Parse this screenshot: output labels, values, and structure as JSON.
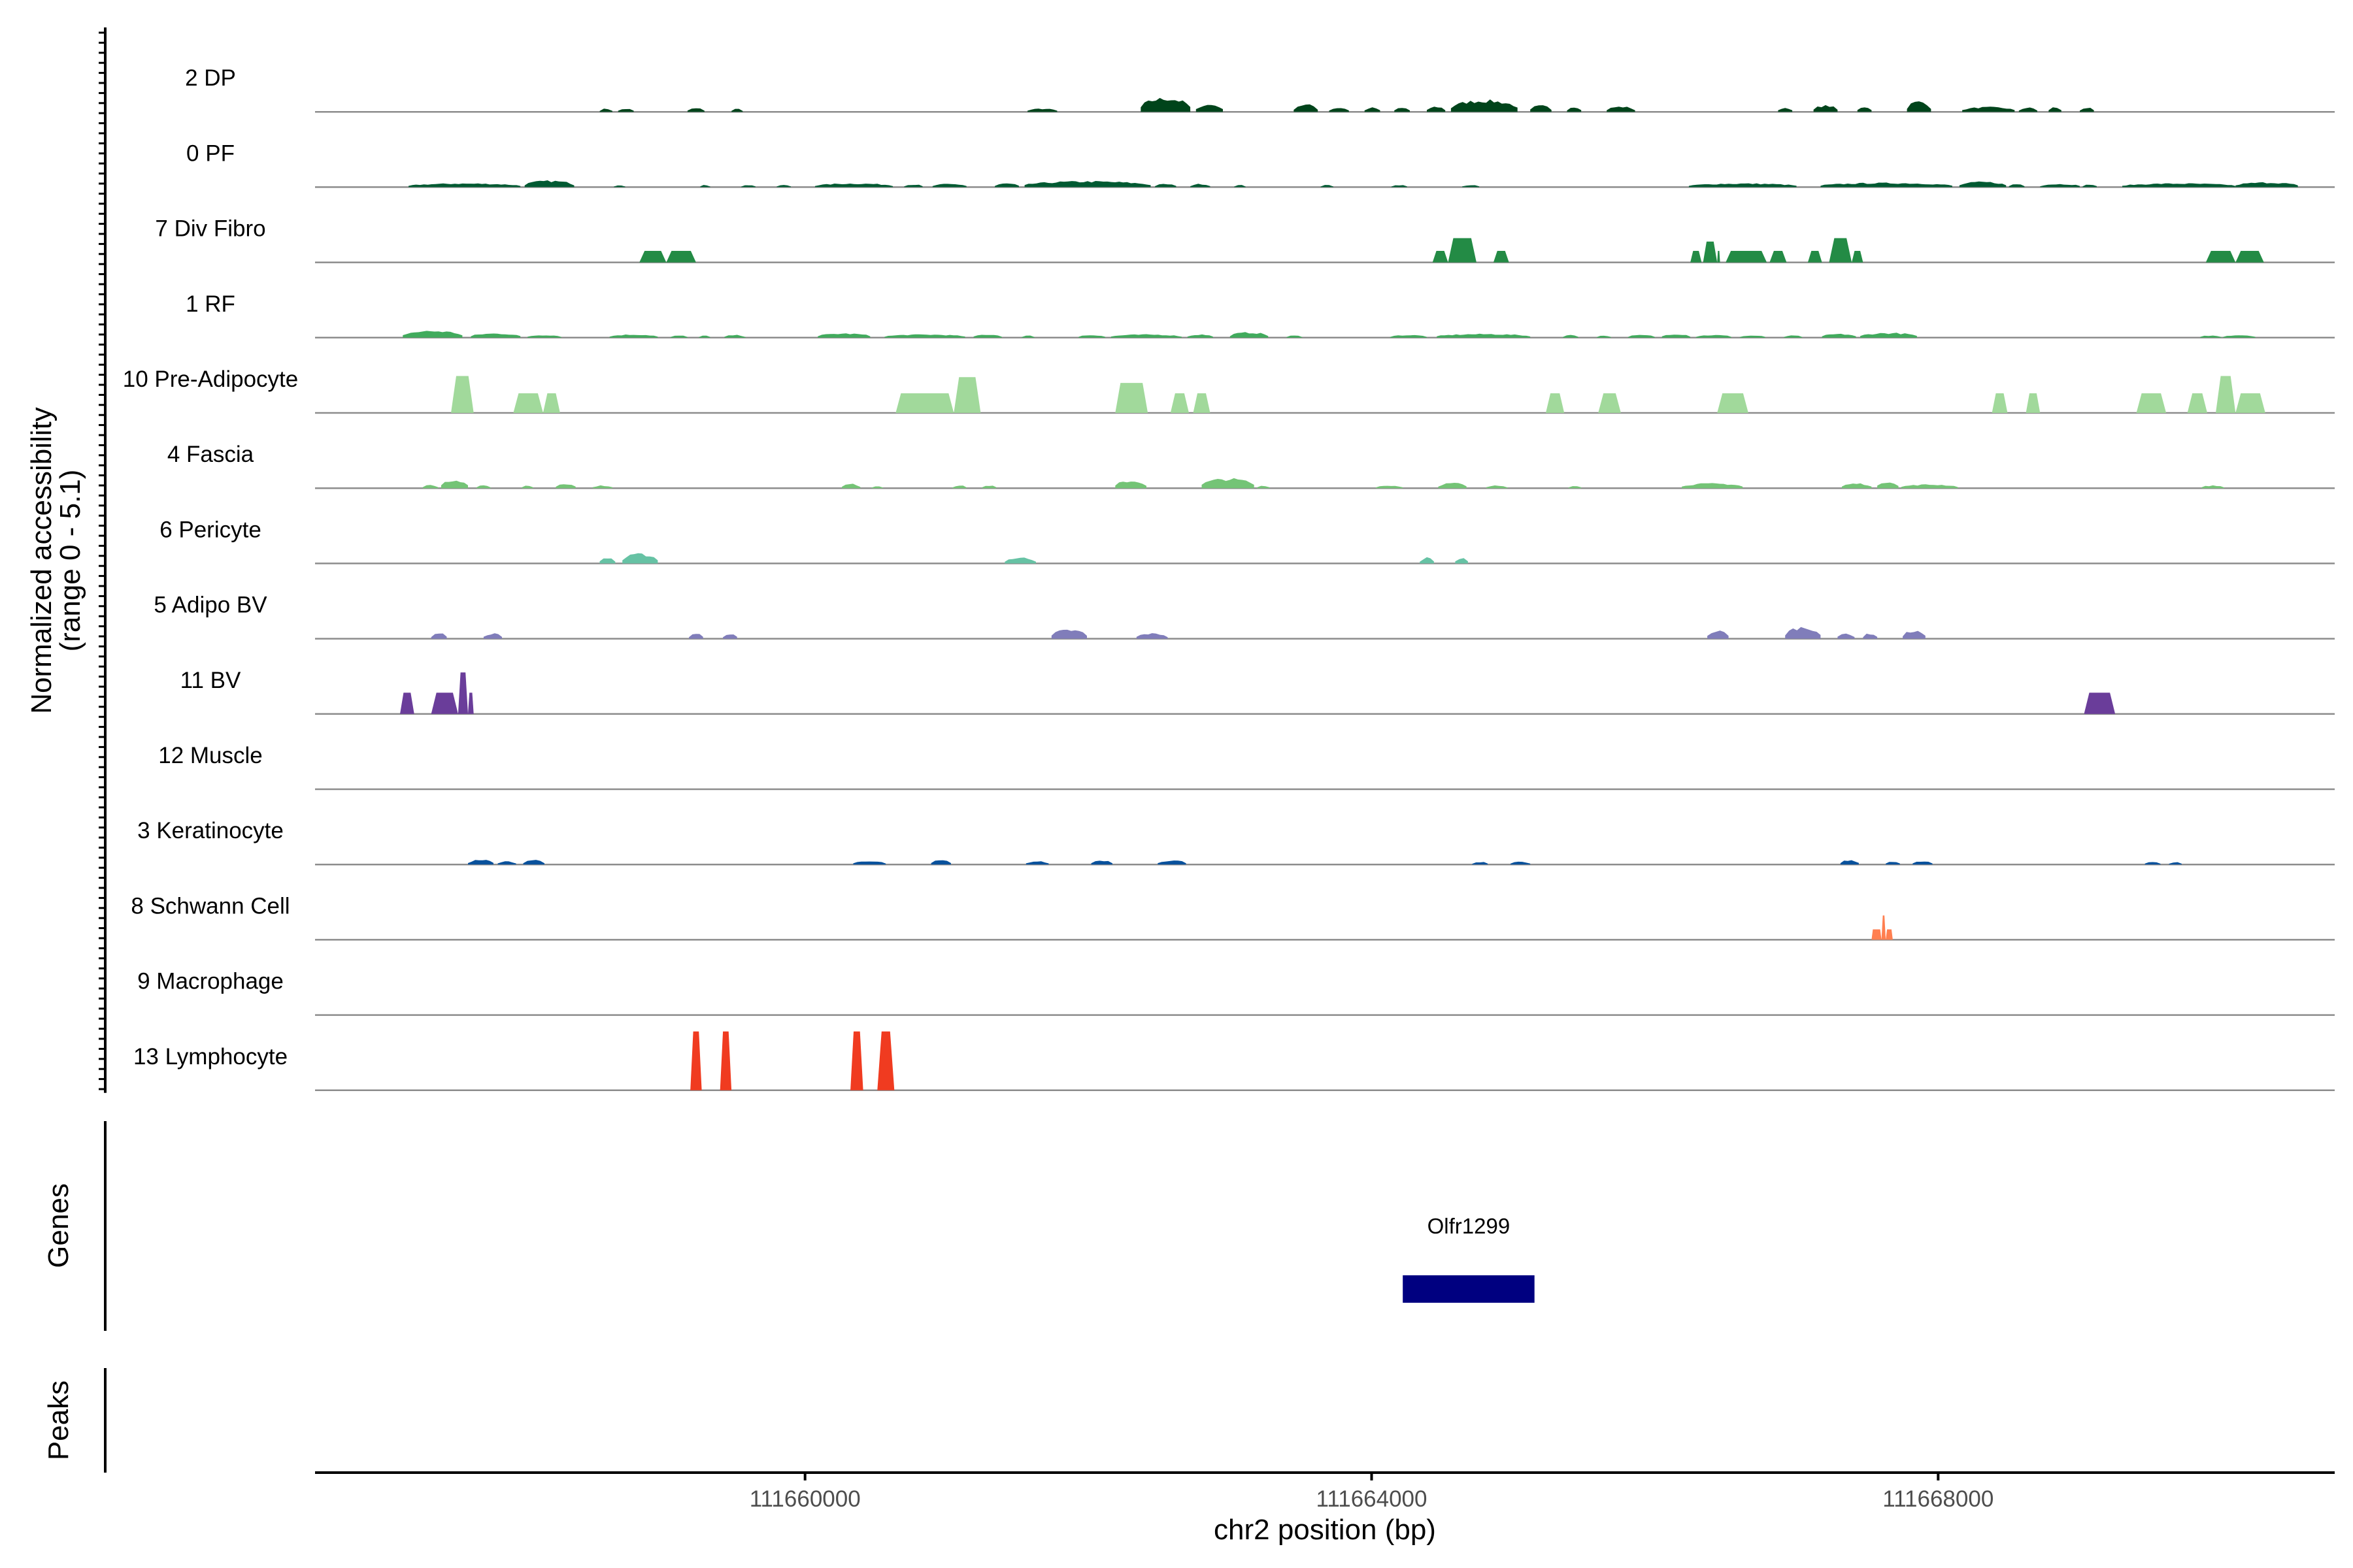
{
  "chart_data": {
    "type": "area",
    "title": "",
    "ylabel_line1": "Normalized accessibility",
    "ylabel_line2": "(range 0 - 5.1)",
    "y_range": [
      0,
      5.1
    ],
    "xlabel": "chr2 position (bp)",
    "xlim": [
      111656540,
      111670800
    ],
    "x_ticks": [
      111660000,
      111664000,
      111668000
    ],
    "x_tick_labels": [
      "111660000",
      "111664000",
      "111668000"
    ],
    "tracks": [
      {
        "name": "2 DP",
        "color": "#00441b",
        "style": "noisy",
        "peaks": [
          [
            111658550,
            111658640,
            0.3
          ],
          [
            111658680,
            111658790,
            0.3
          ],
          [
            111659170,
            111659290,
            0.35
          ],
          [
            111659480,
            111659560,
            0.3
          ],
          [
            111661570,
            111661780,
            0.3
          ],
          [
            111662370,
            111662720,
            1.3
          ],
          [
            111662760,
            111662950,
            0.7
          ],
          [
            111663450,
            111663620,
            0.7
          ],
          [
            111663700,
            111663840,
            0.4
          ],
          [
            111663950,
            111664060,
            0.4
          ],
          [
            111664160,
            111664270,
            0.4
          ],
          [
            111664390,
            111664520,
            0.5
          ],
          [
            111664560,
            111665030,
            1.1
          ],
          [
            111665120,
            111665270,
            0.6
          ],
          [
            111665380,
            111665480,
            0.5
          ],
          [
            111665660,
            111665860,
            0.5
          ],
          [
            111666870,
            111666970,
            0.4
          ],
          [
            111667120,
            111667290,
            0.6
          ],
          [
            111667430,
            111667530,
            0.5
          ],
          [
            111667780,
            111667950,
            1.0
          ],
          [
            111668170,
            111668540,
            0.45
          ],
          [
            111668570,
            111668700,
            0.4
          ],
          [
            111668780,
            111668870,
            0.45
          ],
          [
            111669000,
            111669100,
            0.4
          ]
        ]
      },
      {
        "name": "0 PF",
        "color": "#005a32",
        "style": "noisy",
        "peaks": [
          [
            111657200,
            111657990,
            0.35
          ],
          [
            111658020,
            111658370,
            0.6
          ],
          [
            111658650,
            111658730,
            0.2
          ],
          [
            111659260,
            111659330,
            0.2
          ],
          [
            111659550,
            111659650,
            0.2
          ],
          [
            111659800,
            111659900,
            0.2
          ],
          [
            111660070,
            111660620,
            0.35
          ],
          [
            111660700,
            111660830,
            0.25
          ],
          [
            111660900,
            111661140,
            0.3
          ],
          [
            111661340,
            111661510,
            0.35
          ],
          [
            111661550,
            111662440,
            0.55
          ],
          [
            111662470,
            111662620,
            0.3
          ],
          [
            111662720,
            111662860,
            0.3
          ],
          [
            111663030,
            111663110,
            0.2
          ],
          [
            111663640,
            111663730,
            0.2
          ],
          [
            111664140,
            111664250,
            0.2
          ],
          [
            111664640,
            111664760,
            0.2
          ],
          [
            111666240,
            111667000,
            0.35
          ],
          [
            111667170,
            111668100,
            0.4
          ],
          [
            111668150,
            111668480,
            0.5
          ],
          [
            111668500,
            111668610,
            0.3
          ],
          [
            111668720,
            111669000,
            0.3
          ],
          [
            111669020,
            111669120,
            0.25
          ],
          [
            111669300,
            111670100,
            0.35
          ],
          [
            111670100,
            111670540,
            0.45
          ]
        ]
      },
      {
        "name": "7 Div Fibro",
        "color": "#238b45",
        "style": "blocky",
        "peaks": [
          [
            111658830,
            111659020,
            1.0
          ],
          [
            111659020,
            111659230,
            1.0
          ],
          [
            111664430,
            111664540,
            1.0
          ],
          [
            111664540,
            111664740,
            2.1
          ],
          [
            111664860,
            111664970,
            1.0
          ],
          [
            111666250,
            111666330,
            1.0
          ],
          [
            111666340,
            111666440,
            1.8
          ],
          [
            111666440,
            111666460,
            1.0
          ],
          [
            111666500,
            111666790,
            1.0
          ],
          [
            111666810,
            111666930,
            1.0
          ],
          [
            111667080,
            111667180,
            1.0
          ],
          [
            111667230,
            111667390,
            2.1
          ],
          [
            111667390,
            111667470,
            1.0
          ],
          [
            111669890,
            111670100,
            1.0
          ],
          [
            111670100,
            111670300,
            1.0
          ]
        ]
      },
      {
        "name": "1 RF",
        "color": "#41ab5d",
        "style": "noisy",
        "peaks": [
          [
            111657160,
            111657580,
            0.65
          ],
          [
            111657640,
            111657990,
            0.4
          ],
          [
            111658040,
            111658280,
            0.25
          ],
          [
            111658620,
            111658960,
            0.3
          ],
          [
            111659050,
            111659170,
            0.2
          ],
          [
            111659250,
            111659330,
            0.2
          ],
          [
            111659430,
            111659580,
            0.25
          ],
          [
            111660090,
            111660460,
            0.4
          ],
          [
            111660560,
            111661130,
            0.3
          ],
          [
            111661190,
            111661390,
            0.3
          ],
          [
            111661530,
            111661620,
            0.2
          ],
          [
            111661930,
            111662120,
            0.25
          ],
          [
            111662160,
            111662660,
            0.3
          ],
          [
            111662700,
            111662880,
            0.3
          ],
          [
            111663000,
            111663270,
            0.5
          ],
          [
            111663400,
            111663510,
            0.2
          ],
          [
            111664130,
            111664390,
            0.25
          ],
          [
            111664460,
            111665120,
            0.35
          ],
          [
            111665350,
            111665460,
            0.25
          ],
          [
            111665590,
            111665690,
            0.2
          ],
          [
            111665810,
            111666000,
            0.25
          ],
          [
            111666050,
            111666250,
            0.35
          ],
          [
            111666290,
            111666540,
            0.25
          ],
          [
            111666600,
            111666780,
            0.2
          ],
          [
            111666910,
            111667040,
            0.2
          ],
          [
            111667180,
            111667420,
            0.35
          ],
          [
            111667450,
            111667850,
            0.45
          ],
          [
            111669850,
            111670000,
            0.2
          ],
          [
            111670010,
            111670240,
            0.25
          ]
        ]
      },
      {
        "name": "10 Pre-Adipocyte",
        "color": "#a1d99b",
        "style": "blocky",
        "peaks": [
          [
            111657500,
            111657660,
            3.2
          ],
          [
            111657940,
            111658150,
            1.7
          ],
          [
            111658150,
            111658270,
            1.7
          ],
          [
            111660640,
            111661050,
            1.7
          ],
          [
            111661050,
            111661240,
            3.1
          ],
          [
            111662190,
            111662420,
            2.6
          ],
          [
            111662580,
            111662710,
            1.7
          ],
          [
            111662740,
            111662860,
            1.7
          ],
          [
            111665230,
            111665360,
            1.7
          ],
          [
            111665600,
            111665760,
            1.7
          ],
          [
            111666440,
            111666660,
            1.7
          ],
          [
            111668380,
            111668490,
            1.7
          ],
          [
            111668620,
            111668720,
            1.7
          ],
          [
            111669400,
            111669610,
            1.7
          ],
          [
            111669760,
            111669900,
            1.7
          ],
          [
            111669960,
            111670100,
            3.2
          ],
          [
            111670100,
            111670310,
            1.7
          ]
        ]
      },
      {
        "name": "4 Fascia",
        "color": "#74c476",
        "style": "noisy",
        "peaks": [
          [
            111657300,
            111657410,
            0.3
          ],
          [
            111657430,
            111657620,
            0.8
          ],
          [
            111657680,
            111657780,
            0.25
          ],
          [
            111658000,
            111658080,
            0.25
          ],
          [
            111658240,
            111658380,
            0.45
          ],
          [
            111658500,
            111658640,
            0.25
          ],
          [
            111660260,
            111660390,
            0.4
          ],
          [
            111660470,
            111660550,
            0.2
          ],
          [
            111661040,
            111661140,
            0.25
          ],
          [
            111661250,
            111661350,
            0.25
          ],
          [
            111662190,
            111662410,
            0.7
          ],
          [
            111662800,
            111663170,
            0.9
          ],
          [
            111663190,
            111663280,
            0.25
          ],
          [
            111664030,
            111664220,
            0.25
          ],
          [
            111664470,
            111664670,
            0.5
          ],
          [
            111664810,
            111664960,
            0.25
          ],
          [
            111665390,
            111665480,
            0.25
          ],
          [
            111666190,
            111666620,
            0.45
          ],
          [
            111667320,
            111667530,
            0.45
          ],
          [
            111667570,
            111667720,
            0.65
          ],
          [
            111667740,
            111668140,
            0.35
          ],
          [
            111669860,
            111670020,
            0.25
          ]
        ]
      },
      {
        "name": "6 Pericyte",
        "color": "#66c2a4",
        "style": "noisy",
        "peaks": [
          [
            111658550,
            111658660,
            0.55
          ],
          [
            111658710,
            111658960,
            0.9
          ],
          [
            111661410,
            111661630,
            0.55
          ],
          [
            111664340,
            111664440,
            0.55
          ],
          [
            111664590,
            111664680,
            0.55
          ]
        ]
      },
      {
        "name": "5 Adipo BV",
        "color": "#807dba",
        "style": "noisy",
        "peaks": [
          [
            111657360,
            111657470,
            0.55
          ],
          [
            111657730,
            111657860,
            0.5
          ],
          [
            111659180,
            111659280,
            0.5
          ],
          [
            111659420,
            111659520,
            0.5
          ],
          [
            111661740,
            111661990,
            0.85
          ],
          [
            111662340,
            111662560,
            0.5
          ],
          [
            111666370,
            111666520,
            0.75
          ],
          [
            111666920,
            111667170,
            1.1
          ],
          [
            111667290,
            111667410,
            0.5
          ],
          [
            111667470,
            111667570,
            0.5
          ],
          [
            111667750,
            111667910,
            0.75
          ]
        ]
      },
      {
        "name": "11 BV",
        "color": "#6a3d9a",
        "style": "blocky",
        "peaks": [
          [
            111657140,
            111657240,
            1.85
          ],
          [
            111657360,
            111657550,
            1.85
          ],
          [
            111657550,
            111657620,
            3.6
          ],
          [
            111657620,
            111657660,
            1.85
          ],
          [
            111669030,
            111669250,
            1.85
          ]
        ]
      },
      {
        "name": "12 Muscle",
        "color": "#4d4d4d",
        "style": "blocky",
        "peaks": []
      },
      {
        "name": "3 Keratinocyte",
        "color": "#08519c",
        "style": "noisy",
        "peaks": [
          [
            111657620,
            111657800,
            0.45
          ],
          [
            111657830,
            111657960,
            0.3
          ],
          [
            111658010,
            111658160,
            0.45
          ],
          [
            111660340,
            111660570,
            0.3
          ],
          [
            111660890,
            111661030,
            0.4
          ],
          [
            111661560,
            111661720,
            0.3
          ],
          [
            111662020,
            111662170,
            0.4
          ],
          [
            111662490,
            111662690,
            0.4
          ],
          [
            111664710,
            111664820,
            0.25
          ],
          [
            111664980,
            111665120,
            0.25
          ],
          [
            111667310,
            111667440,
            0.4
          ],
          [
            111667630,
            111667730,
            0.3
          ],
          [
            111667820,
            111667960,
            0.3
          ],
          [
            111669460,
            111669570,
            0.25
          ],
          [
            111669630,
            111669720,
            0.25
          ]
        ]
      },
      {
        "name": "8 Schwann Cell",
        "color": "#ff7f50",
        "style": "spiky",
        "peaks": [
          [
            111667530,
            111667600,
            0.9
          ],
          [
            111667600,
            111667630,
            2.1
          ],
          [
            111667630,
            111667680,
            0.9
          ]
        ]
      },
      {
        "name": "9 Macrophage",
        "color": "#4d4d4d",
        "style": "blocky",
        "peaks": []
      },
      {
        "name": "13 Lymphocyte",
        "color": "#f03b20",
        "style": "blocky",
        "peaks": [
          [
            111659190,
            111659270,
            5.1
          ],
          [
            111659400,
            111659480,
            5.1
          ],
          [
            111660320,
            111660410,
            5.1
          ],
          [
            111660510,
            111660630,
            5.1
          ]
        ]
      }
    ],
    "genes_label": "Genes",
    "genes": [
      {
        "name": "Olfr1299",
        "start": 111664220,
        "end": 111665150,
        "color": "#000080"
      }
    ],
    "peaks_label": "Peaks"
  }
}
